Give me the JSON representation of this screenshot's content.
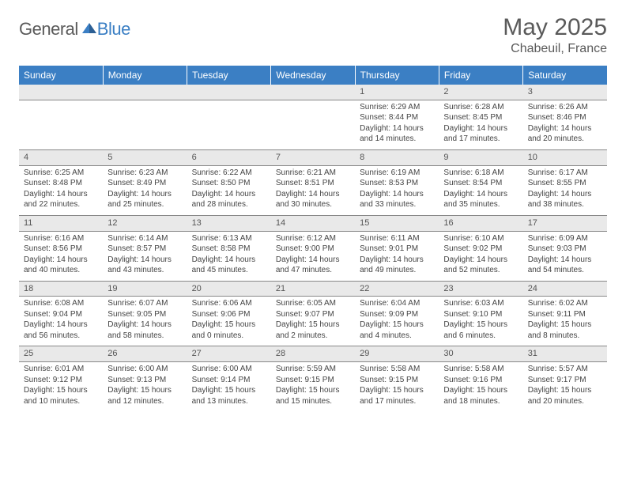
{
  "logo": {
    "part1": "General",
    "part2": "Blue"
  },
  "title": "May 2025",
  "location": "Chabeuil, France",
  "weekdays": [
    "Sunday",
    "Monday",
    "Tuesday",
    "Wednesday",
    "Thursday",
    "Friday",
    "Saturday"
  ],
  "colors": {
    "header_bg": "#3b7fc4",
    "header_text": "#ffffff",
    "daynum_bg": "#e9e9e9",
    "border": "#888888",
    "text": "#444444",
    "title_text": "#5a5a5a"
  },
  "typography": {
    "title_fontsize": 30,
    "location_fontsize": 16,
    "weekday_fontsize": 12,
    "daynum_fontsize": 11,
    "body_fontsize": 10
  },
  "layout": {
    "columns": 7,
    "rows": 5,
    "first_day_column": 4
  },
  "days": [
    {
      "n": "1",
      "sunrise": "Sunrise: 6:29 AM",
      "sunset": "Sunset: 8:44 PM",
      "daylight": "Daylight: 14 hours and 14 minutes."
    },
    {
      "n": "2",
      "sunrise": "Sunrise: 6:28 AM",
      "sunset": "Sunset: 8:45 PM",
      "daylight": "Daylight: 14 hours and 17 minutes."
    },
    {
      "n": "3",
      "sunrise": "Sunrise: 6:26 AM",
      "sunset": "Sunset: 8:46 PM",
      "daylight": "Daylight: 14 hours and 20 minutes."
    },
    {
      "n": "4",
      "sunrise": "Sunrise: 6:25 AM",
      "sunset": "Sunset: 8:48 PM",
      "daylight": "Daylight: 14 hours and 22 minutes."
    },
    {
      "n": "5",
      "sunrise": "Sunrise: 6:23 AM",
      "sunset": "Sunset: 8:49 PM",
      "daylight": "Daylight: 14 hours and 25 minutes."
    },
    {
      "n": "6",
      "sunrise": "Sunrise: 6:22 AM",
      "sunset": "Sunset: 8:50 PM",
      "daylight": "Daylight: 14 hours and 28 minutes."
    },
    {
      "n": "7",
      "sunrise": "Sunrise: 6:21 AM",
      "sunset": "Sunset: 8:51 PM",
      "daylight": "Daylight: 14 hours and 30 minutes."
    },
    {
      "n": "8",
      "sunrise": "Sunrise: 6:19 AM",
      "sunset": "Sunset: 8:53 PM",
      "daylight": "Daylight: 14 hours and 33 minutes."
    },
    {
      "n": "9",
      "sunrise": "Sunrise: 6:18 AM",
      "sunset": "Sunset: 8:54 PM",
      "daylight": "Daylight: 14 hours and 35 minutes."
    },
    {
      "n": "10",
      "sunrise": "Sunrise: 6:17 AM",
      "sunset": "Sunset: 8:55 PM",
      "daylight": "Daylight: 14 hours and 38 minutes."
    },
    {
      "n": "11",
      "sunrise": "Sunrise: 6:16 AM",
      "sunset": "Sunset: 8:56 PM",
      "daylight": "Daylight: 14 hours and 40 minutes."
    },
    {
      "n": "12",
      "sunrise": "Sunrise: 6:14 AM",
      "sunset": "Sunset: 8:57 PM",
      "daylight": "Daylight: 14 hours and 43 minutes."
    },
    {
      "n": "13",
      "sunrise": "Sunrise: 6:13 AM",
      "sunset": "Sunset: 8:58 PM",
      "daylight": "Daylight: 14 hours and 45 minutes."
    },
    {
      "n": "14",
      "sunrise": "Sunrise: 6:12 AM",
      "sunset": "Sunset: 9:00 PM",
      "daylight": "Daylight: 14 hours and 47 minutes."
    },
    {
      "n": "15",
      "sunrise": "Sunrise: 6:11 AM",
      "sunset": "Sunset: 9:01 PM",
      "daylight": "Daylight: 14 hours and 49 minutes."
    },
    {
      "n": "16",
      "sunrise": "Sunrise: 6:10 AM",
      "sunset": "Sunset: 9:02 PM",
      "daylight": "Daylight: 14 hours and 52 minutes."
    },
    {
      "n": "17",
      "sunrise": "Sunrise: 6:09 AM",
      "sunset": "Sunset: 9:03 PM",
      "daylight": "Daylight: 14 hours and 54 minutes."
    },
    {
      "n": "18",
      "sunrise": "Sunrise: 6:08 AM",
      "sunset": "Sunset: 9:04 PM",
      "daylight": "Daylight: 14 hours and 56 minutes."
    },
    {
      "n": "19",
      "sunrise": "Sunrise: 6:07 AM",
      "sunset": "Sunset: 9:05 PM",
      "daylight": "Daylight: 14 hours and 58 minutes."
    },
    {
      "n": "20",
      "sunrise": "Sunrise: 6:06 AM",
      "sunset": "Sunset: 9:06 PM",
      "daylight": "Daylight: 15 hours and 0 minutes."
    },
    {
      "n": "21",
      "sunrise": "Sunrise: 6:05 AM",
      "sunset": "Sunset: 9:07 PM",
      "daylight": "Daylight: 15 hours and 2 minutes."
    },
    {
      "n": "22",
      "sunrise": "Sunrise: 6:04 AM",
      "sunset": "Sunset: 9:09 PM",
      "daylight": "Daylight: 15 hours and 4 minutes."
    },
    {
      "n": "23",
      "sunrise": "Sunrise: 6:03 AM",
      "sunset": "Sunset: 9:10 PM",
      "daylight": "Daylight: 15 hours and 6 minutes."
    },
    {
      "n": "24",
      "sunrise": "Sunrise: 6:02 AM",
      "sunset": "Sunset: 9:11 PM",
      "daylight": "Daylight: 15 hours and 8 minutes."
    },
    {
      "n": "25",
      "sunrise": "Sunrise: 6:01 AM",
      "sunset": "Sunset: 9:12 PM",
      "daylight": "Daylight: 15 hours and 10 minutes."
    },
    {
      "n": "26",
      "sunrise": "Sunrise: 6:00 AM",
      "sunset": "Sunset: 9:13 PM",
      "daylight": "Daylight: 15 hours and 12 minutes."
    },
    {
      "n": "27",
      "sunrise": "Sunrise: 6:00 AM",
      "sunset": "Sunset: 9:14 PM",
      "daylight": "Daylight: 15 hours and 13 minutes."
    },
    {
      "n": "28",
      "sunrise": "Sunrise: 5:59 AM",
      "sunset": "Sunset: 9:15 PM",
      "daylight": "Daylight: 15 hours and 15 minutes."
    },
    {
      "n": "29",
      "sunrise": "Sunrise: 5:58 AM",
      "sunset": "Sunset: 9:15 PM",
      "daylight": "Daylight: 15 hours and 17 minutes."
    },
    {
      "n": "30",
      "sunrise": "Sunrise: 5:58 AM",
      "sunset": "Sunset: 9:16 PM",
      "daylight": "Daylight: 15 hours and 18 minutes."
    },
    {
      "n": "31",
      "sunrise": "Sunrise: 5:57 AM",
      "sunset": "Sunset: 9:17 PM",
      "daylight": "Daylight: 15 hours and 20 minutes."
    }
  ]
}
